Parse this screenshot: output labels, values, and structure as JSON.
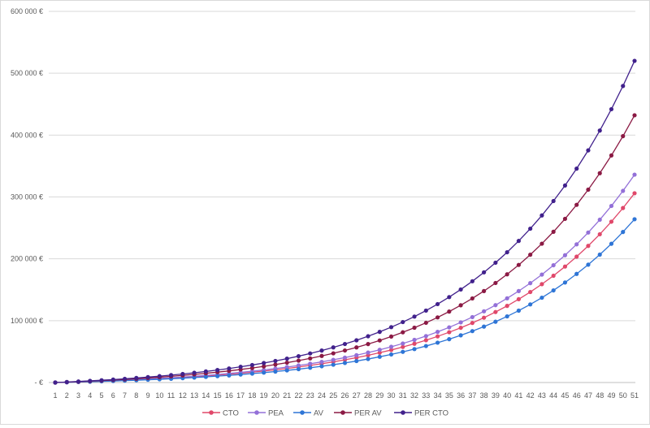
{
  "chart_data": {
    "type": "line",
    "title": "",
    "xlabel": "",
    "ylabel": "",
    "ylim": [
      0,
      600000
    ],
    "y_ticks": [
      0,
      100000,
      200000,
      300000,
      400000,
      500000,
      600000
    ],
    "y_tick_labels": [
      "-   €",
      "100 000 €",
      "200 000 €",
      "300 000 €",
      "400 000 €",
      "500 000 €",
      "600 000 €"
    ],
    "grid": "horizontal",
    "legend": "bottom",
    "x": [
      1,
      2,
      3,
      4,
      5,
      6,
      7,
      8,
      9,
      10,
      11,
      12,
      13,
      14,
      15,
      16,
      17,
      18,
      19,
      20,
      21,
      22,
      23,
      24,
      25,
      26,
      27,
      28,
      29,
      30,
      31,
      32,
      33,
      34,
      35,
      36,
      37,
      38,
      39,
      40,
      41,
      42,
      43,
      44,
      45,
      46,
      47,
      48,
      49,
      50,
      51
    ],
    "series": [
      {
        "name": "CTO",
        "color": "#e0486a",
        "values": [
          0,
          500,
          1000,
          1600,
          2200,
          2800,
          3500,
          4300,
          5200,
          6100,
          7100,
          8100,
          9300,
          10500,
          11900,
          13300,
          14900,
          16700,
          18500,
          20500,
          22700,
          25100,
          27700,
          30400,
          33400,
          36700,
          40200,
          44000,
          48200,
          52600,
          57500,
          62700,
          68400,
          74600,
          81300,
          88500,
          96300,
          104800,
          114000,
          123900,
          134700,
          146300,
          159000,
          172600,
          187500,
          203500,
          220900,
          239700,
          260000,
          282100,
          306000
        ]
      },
      {
        "name": "PEA",
        "color": "#9370d8",
        "values": [
          0,
          500,
          1100,
          1700,
          2400,
          3100,
          3900,
          4800,
          5700,
          6700,
          7700,
          8900,
          10200,
          11600,
          13000,
          14700,
          16400,
          18300,
          20300,
          22600,
          25000,
          27600,
          30400,
          33400,
          36700,
          40300,
          44200,
          48400,
          52900,
          57800,
          63100,
          68900,
          75100,
          81900,
          89200,
          97200,
          105800,
          115100,
          125100,
          136100,
          147900,
          160700,
          174500,
          189600,
          205800,
          223400,
          242500,
          263200,
          285500,
          309800,
          336000
        ]
      },
      {
        "name": "AV",
        "color": "#2e75d6",
        "values": [
          0,
          400,
          900,
          1300,
          1900,
          2400,
          3100,
          3700,
          4500,
          5200,
          6100,
          7000,
          8000,
          9100,
          10300,
          11500,
          12900,
          14400,
          16000,
          17700,
          19600,
          21600,
          23900,
          26300,
          28800,
          31700,
          34700,
          38000,
          41600,
          45400,
          49600,
          54100,
          59000,
          64400,
          70100,
          76300,
          83100,
          90400,
          98300,
          106900,
          116200,
          126300,
          137100,
          148900,
          161700,
          175600,
          190500,
          206800,
          224300,
          243400,
          264000
        ]
      },
      {
        "name": "PER AV",
        "color": "#8b1a44",
        "values": [
          0,
          700,
          1400,
          2200,
          3100,
          4000,
          5000,
          6100,
          7300,
          8600,
          10000,
          11500,
          13100,
          14900,
          16800,
          18800,
          21100,
          23500,
          26100,
          29000,
          32100,
          35400,
          39000,
          43000,
          47200,
          51800,
          56800,
          62200,
          68000,
          74300,
          81200,
          88600,
          96600,
          105300,
          114700,
          124900,
          136000,
          147900,
          160900,
          174900,
          190100,
          206600,
          224400,
          243700,
          264600,
          287300,
          311800,
          338400,
          367100,
          398300,
          432000
        ]
      },
      {
        "name": "PER CTO",
        "color": "#41218c",
        "values": [
          0,
          800,
          1700,
          2700,
          3700,
          4800,
          6000,
          7400,
          8800,
          10300,
          12000,
          13800,
          15800,
          17900,
          20200,
          22700,
          25400,
          28300,
          31500,
          34900,
          38600,
          42600,
          47000,
          51700,
          56800,
          62300,
          68300,
          74800,
          81900,
          89500,
          97700,
          106600,
          116300,
          126800,
          138100,
          150400,
          163700,
          178100,
          193700,
          210600,
          228900,
          248700,
          270100,
          293400,
          318500,
          345800,
          375300,
          407300,
          441900,
          479400,
          520000
        ]
      }
    ]
  }
}
